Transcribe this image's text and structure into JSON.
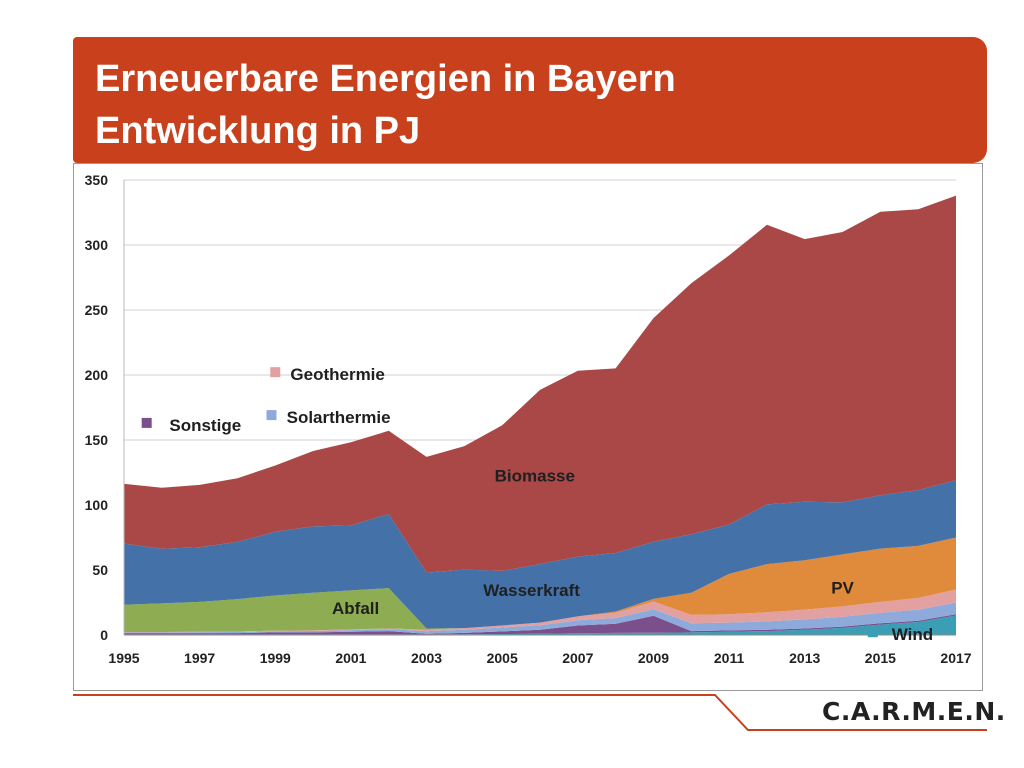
{
  "slide": {
    "title_line1": "Erneuerbare Energien in Bayern",
    "title_line2": "Entwicklung in PJ",
    "logo": "C.A.R.M.E.N.",
    "colors": {
      "banner": "#c9401d",
      "footer_line": "#c9401d"
    }
  },
  "chart_data": {
    "type": "area",
    "stacked": true,
    "title": "",
    "xlabel": "",
    "ylabel": "",
    "ylim": [
      0,
      350
    ],
    "xlim": [
      1995,
      2017
    ],
    "grid": true,
    "x": [
      1995,
      1996,
      1997,
      1998,
      1999,
      2000,
      2001,
      2002,
      2003,
      2004,
      2005,
      2006,
      2007,
      2008,
      2009,
      2010,
      2011,
      2012,
      2013,
      2014,
      2015,
      2016,
      2017
    ],
    "x_tick_labels": [
      "1995",
      "1997",
      "1999",
      "2001",
      "2003",
      "2005",
      "2007",
      "2009",
      "2011",
      "2013",
      "2015",
      "2017"
    ],
    "y_tick_labels": [
      "0",
      "50",
      "100",
      "150",
      "200",
      "250",
      "300",
      "350"
    ],
    "series": [
      {
        "name": "Wind",
        "color": "#3a9fb5",
        "values": [
          0.5,
          0.5,
          0.5,
          0.5,
          0.5,
          0.5,
          0.5,
          0.5,
          0.5,
          0.6,
          0.8,
          1.0,
          1.3,
          1.6,
          1.8,
          2,
          2.5,
          3,
          4,
          5.5,
          8,
          10,
          15
        ]
      },
      {
        "name": "Sonstige",
        "color": "#7a4f8c",
        "values": [
          1,
          1,
          1,
          1,
          1.5,
          1.5,
          2,
          2.5,
          0.5,
          1,
          2,
          3,
          6,
          7,
          13,
          1,
          1,
          1,
          1,
          1,
          1,
          1,
          1
        ]
      },
      {
        "name": "Solarthermie",
        "color": "#8eaadb",
        "values": [
          0.5,
          0.5,
          0.7,
          0.8,
          1,
          1.1,
          1.3,
          1.5,
          2,
          2.5,
          3,
          3.5,
          4,
          4.5,
          5,
          6,
          6,
          6.5,
          7,
          7.5,
          8,
          8.5,
          9
        ]
      },
      {
        "name": "Geothermie",
        "color": "#e3a0a0",
        "values": [
          0.3,
          0.3,
          0.3,
          0.3,
          0.4,
          0.4,
          0.5,
          0.6,
          1,
          1.2,
          1.5,
          2,
          3,
          4,
          6,
          6.5,
          6.5,
          7,
          7.5,
          8,
          8.5,
          9,
          10
        ]
      },
      {
        "name": "PV",
        "color": "#e08a3c",
        "values": [
          0,
          0,
          0,
          0,
          0,
          0,
          0,
          0,
          0,
          0,
          0,
          0,
          0,
          1,
          2,
          17,
          31,
          37,
          38,
          40,
          41,
          40,
          40
        ]
      },
      {
        "name": "Abfall",
        "color": "#8ead53",
        "values": [
          21,
          22,
          23,
          25,
          27,
          29,
          30,
          31,
          1,
          0,
          0,
          0,
          0,
          0,
          0,
          0,
          0,
          0,
          0,
          0,
          0,
          0,
          0
        ]
      },
      {
        "name": "Wasserkraft",
        "color": "#4472a8",
        "values": [
          47,
          42,
          42,
          44,
          49,
          51,
          50,
          57,
          43,
          45,
          42,
          45,
          46,
          45,
          44,
          45,
          38,
          46,
          45,
          40,
          41,
          43,
          44
        ]
      },
      {
        "name": "Biomasse",
        "color": "#a94847",
        "values": [
          46,
          47,
          48,
          49,
          51,
          58,
          64,
          64,
          89,
          95,
          112,
          134,
          143,
          142,
          172,
          193,
          207,
          215,
          202,
          208,
          218,
          216,
          219
        ]
      }
    ],
    "labels": {
      "Sonstige": "Sonstige",
      "Geothermie": "Geothermie",
      "Solarthermie": "Solarthermie",
      "Biomasse": "Biomasse",
      "Wasserkraft": "Wasserkraft",
      "Abfall": "Abfall",
      "PV": "PV",
      "Wind": "Wind"
    }
  }
}
